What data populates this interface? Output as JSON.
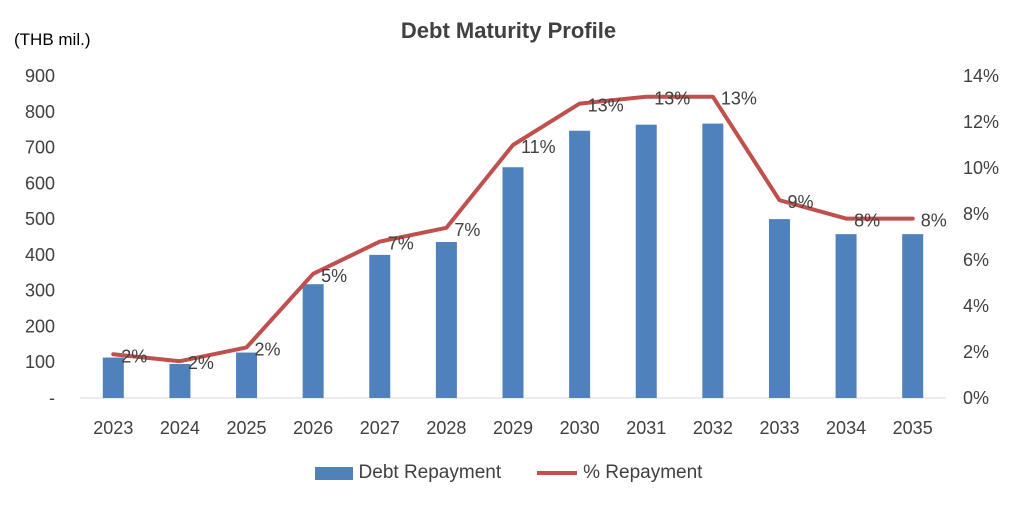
{
  "chart_data": {
    "type": "bar",
    "title": "Debt Maturity Profile",
    "unit_label": "(THB mil.)",
    "categories": [
      "2023",
      "2024",
      "2025",
      "2026",
      "2027",
      "2028",
      "2029",
      "2030",
      "2031",
      "2032",
      "2033",
      "2034",
      "2035"
    ],
    "series": [
      {
        "name": "Debt Repayment",
        "type": "bar",
        "axis": "left",
        "color": "#4F81BD",
        "values": [
          113,
          95,
          127,
          318,
          400,
          436,
          645,
          747,
          764,
          767,
          500,
          458,
          458
        ]
      },
      {
        "name": "% Repayment",
        "type": "line",
        "axis": "right",
        "color": "#C0504D",
        "values": [
          1.9,
          1.6,
          2.2,
          5.4,
          6.8,
          7.4,
          11.0,
          12.8,
          13.1,
          13.1,
          8.6,
          7.8,
          7.8
        ],
        "data_labels": [
          "2%",
          "2%",
          "2%",
          "5%",
          "7%",
          "7%",
          "11%",
          "13%",
          "13%",
          "13%",
          "9%",
          "8%",
          "8%"
        ]
      }
    ],
    "left_axis": {
      "ylim": [
        0,
        900
      ],
      "ticks": [
        "-",
        "100",
        "200",
        "300",
        "400",
        "500",
        "600",
        "700",
        "800",
        "900"
      ]
    },
    "right_axis": {
      "ylim": [
        0,
        14
      ],
      "ticks": [
        "0%",
        "2%",
        "4%",
        "6%",
        "8%",
        "10%",
        "12%",
        "14%"
      ]
    },
    "grid": false,
    "legend_position": "bottom"
  }
}
